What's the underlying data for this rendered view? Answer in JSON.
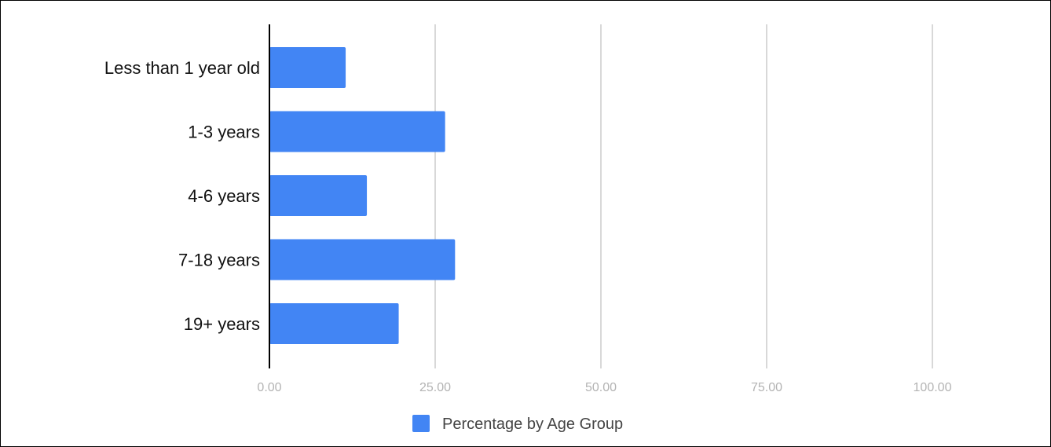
{
  "chart_data": {
    "type": "bar",
    "orientation": "horizontal",
    "title": "",
    "xlabel": "",
    "ylabel": "",
    "categories": [
      "Less than 1 year old",
      "1-3 years",
      "4-6 years",
      "7-18 years",
      "19+ years"
    ],
    "series": [
      {
        "name": "Percentage by Age Group",
        "values": [
          11.5,
          26.5,
          14.7,
          28.0,
          19.5
        ],
        "color": "#4285f4"
      }
    ],
    "xlim": [
      0,
      100
    ],
    "x_ticks": [
      0,
      25,
      50,
      75,
      100
    ],
    "x_tick_labels": [
      "0.00",
      "25.00",
      "50.00",
      "75.00",
      "100.00"
    ],
    "grid": true,
    "legend_position": "bottom"
  },
  "colors": {
    "bar": "#4285f4",
    "gridline": "#cccccc",
    "axis": "#000000",
    "tick_text": "#b3b3b3"
  }
}
